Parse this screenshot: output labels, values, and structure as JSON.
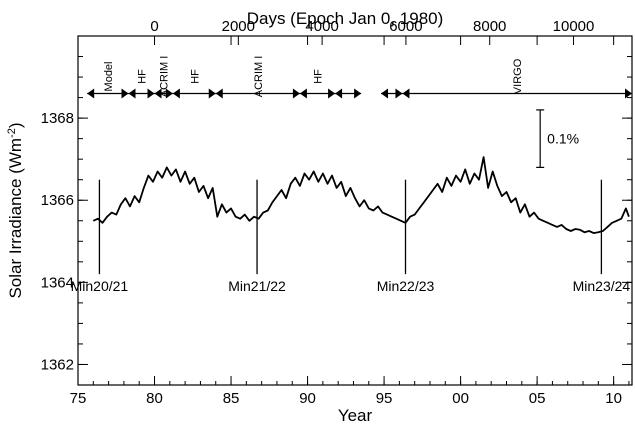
{
  "chart_data": {
    "type": "line",
    "title": "",
    "xlabel": "Year",
    "x2label": "Days (Epoch Jan 0, 1980)",
    "ylabel": "Solar Irradiance (Wm",
    "ylabel_sup": "-2",
    "ylabel_close": ")",
    "xlim": [
      1975,
      2011.2
    ],
    "ylim": [
      1361.5,
      1370
    ],
    "x_ticks": [
      {
        "value": 1975,
        "label": "75"
      },
      {
        "value": 1980,
        "label": "80"
      },
      {
        "value": 1985,
        "label": "85"
      },
      {
        "value": 1990,
        "label": "90"
      },
      {
        "value": 1995,
        "label": "95"
      },
      {
        "value": 2000,
        "label": "00"
      },
      {
        "value": 2005,
        "label": "05"
      },
      {
        "value": 2010,
        "label": "10"
      }
    ],
    "x2_ticks": [
      {
        "value": 1980.0,
        "label": "0"
      },
      {
        "value": 1985.476,
        "label": "2000"
      },
      {
        "value": 1990.951,
        "label": "4000"
      },
      {
        "value": 1996.427,
        "label": "6000"
      },
      {
        "value": 2001.903,
        "label": "8000"
      },
      {
        "value": 2007.379,
        "label": "10000"
      }
    ],
    "y_ticks": [
      {
        "value": 1362,
        "label": "1362"
      },
      {
        "value": 1364,
        "label": "1364"
      },
      {
        "value": 1366,
        "label": "1366"
      },
      {
        "value": 1368,
        "label": "1368"
      }
    ],
    "y_minor_step": 0.5,
    "x_minor_step": 1,
    "grid": false,
    "series": [
      {
        "x": [
          1976.0,
          1976.3,
          1976.6,
          1976.9,
          1977.2,
          1977.5,
          1977.8,
          1978.1,
          1978.4,
          1978.7,
          1979.0,
          1979.3,
          1979.6,
          1979.9,
          1980.2,
          1980.5,
          1980.8,
          1981.1,
          1981.4,
          1981.7,
          1982.0,
          1982.3,
          1982.6,
          1982.9,
          1983.2,
          1983.5,
          1983.8,
          1984.1,
          1984.4,
          1984.7,
          1985.0,
          1985.3,
          1985.6,
          1985.9,
          1986.2,
          1986.5,
          1986.8,
          1987.1,
          1987.4,
          1987.7,
          1988.0,
          1988.3,
          1988.6,
          1988.9,
          1989.2,
          1989.5,
          1989.8,
          1990.1,
          1990.4,
          1990.7,
          1991.0,
          1991.3,
          1991.6,
          1991.9,
          1992.2,
          1992.5,
          1992.8,
          1993.1,
          1993.4,
          1993.7,
          1994.0,
          1994.3,
          1994.6,
          1994.9,
          1995.2,
          1995.5,
          1995.8,
          1996.1,
          1996.4,
          1996.7,
          1997.0,
          1997.3,
          1997.6,
          1997.9,
          1998.2,
          1998.5,
          1998.8,
          1999.1,
          1999.4,
          1999.7,
          2000.0,
          2000.3,
          2000.6,
          2000.9,
          2001.2,
          2001.5,
          2001.8,
          2002.1,
          2002.4,
          2002.7,
          2003.0,
          2003.3,
          2003.6,
          2003.9,
          2004.2,
          2004.5,
          2004.8,
          2005.1,
          2005.4,
          2005.7,
          2006.0,
          2006.3,
          2006.6,
          2006.9,
          2007.2,
          2007.5,
          2007.8,
          2008.1,
          2008.4,
          2008.7,
          2009.0,
          2009.3,
          2009.6,
          2009.9,
          2010.2,
          2010.5,
          2010.8,
          2011.0
        ],
        "y": [
          1365.5,
          1365.55,
          1365.45,
          1365.6,
          1365.7,
          1365.65,
          1365.9,
          1366.05,
          1365.85,
          1366.1,
          1365.95,
          1366.3,
          1366.6,
          1366.45,
          1366.7,
          1366.55,
          1366.8,
          1366.6,
          1366.75,
          1366.45,
          1366.7,
          1366.4,
          1366.55,
          1366.2,
          1366.35,
          1366.05,
          1366.3,
          1365.6,
          1365.9,
          1365.7,
          1365.8,
          1365.6,
          1365.55,
          1365.65,
          1365.5,
          1365.6,
          1365.55,
          1365.7,
          1365.75,
          1365.95,
          1366.1,
          1366.25,
          1366.05,
          1366.4,
          1366.55,
          1366.35,
          1366.65,
          1366.5,
          1366.7,
          1366.45,
          1366.65,
          1366.4,
          1366.6,
          1366.3,
          1366.45,
          1366.1,
          1366.3,
          1366.05,
          1365.85,
          1366.0,
          1365.8,
          1365.75,
          1365.85,
          1365.7,
          1365.65,
          1365.6,
          1365.55,
          1365.5,
          1365.45,
          1365.6,
          1365.65,
          1365.8,
          1365.95,
          1366.1,
          1366.25,
          1366.4,
          1366.2,
          1366.55,
          1366.35,
          1366.6,
          1366.45,
          1366.75,
          1366.4,
          1366.65,
          1366.5,
          1367.05,
          1366.3,
          1366.7,
          1366.35,
          1366.1,
          1366.2,
          1365.95,
          1366.05,
          1365.7,
          1365.9,
          1365.6,
          1365.7,
          1365.55,
          1365.5,
          1365.45,
          1365.4,
          1365.35,
          1365.4,
          1365.3,
          1365.25,
          1365.3,
          1365.28,
          1365.22,
          1365.25,
          1365.2,
          1365.22,
          1365.25,
          1365.35,
          1365.45,
          1365.5,
          1365.55,
          1365.8,
          1365.6
        ]
      }
    ],
    "minima": [
      {
        "x": 1976.4,
        "label": "Min20/21",
        "y_top": 1366.5,
        "y_bottom": 1364.2
      },
      {
        "x": 1986.7,
        "label": "Min21/22",
        "y_top": 1366.5,
        "y_bottom": 1364.2
      },
      {
        "x": 1996.4,
        "label": "Min22/23",
        "y_top": 1366.5,
        "y_bottom": 1364.2
      },
      {
        "x": 2009.2,
        "label": "Min23/24",
        "y_top": 1366.5,
        "y_bottom": 1364.2
      }
    ],
    "instruments": [
      {
        "label": "Model",
        "from": 1975.6,
        "to": 1978.3
      },
      {
        "label": "HF",
        "from": 1978.3,
        "to": 1980.0
      },
      {
        "label": "ACRIM I",
        "from": 1980.0,
        "to": 1981.2
      },
      {
        "label": "HF",
        "from": 1981.2,
        "to": 1984.0
      },
      {
        "label": "ACRIM I",
        "from": 1984.0,
        "to": 1989.5
      },
      {
        "label": "HF",
        "from": 1989.5,
        "to": 1991.8
      },
      {
        "label": "",
        "from": 1991.8,
        "to": 1993.5
      },
      {
        "label": "",
        "from": 1994.8,
        "to": 1996.2
      },
      {
        "label": "VIRGO",
        "from": 1996.2,
        "to": 2011.2
      }
    ],
    "instrument_y": 1368.6,
    "scale_bar": {
      "label": "0.1%",
      "x": 2005.2,
      "y_top": 1368.2,
      "y_bottom": 1366.8
    }
  }
}
